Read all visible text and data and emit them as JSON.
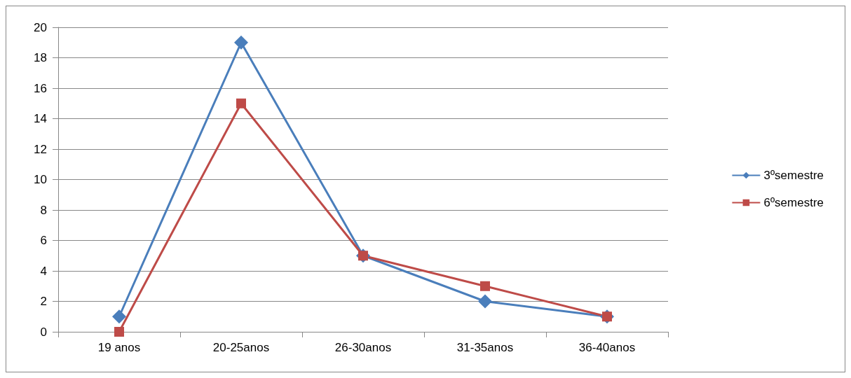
{
  "chart_data": {
    "type": "line",
    "categories": [
      "19 anos",
      "20-25anos",
      "26-30anos",
      "31-35anos",
      "36-40anos"
    ],
    "series": [
      {
        "name": "3ºsemestre",
        "color": "#4a7ebb",
        "marker": "diamond",
        "values": [
          1,
          19,
          5,
          2,
          1
        ]
      },
      {
        "name": "6ºsemestre",
        "color": "#be4b48",
        "marker": "square",
        "values": [
          0,
          15,
          5,
          3,
          1
        ]
      }
    ],
    "ylim": [
      0,
      20
    ],
    "yticks": [
      0,
      2,
      4,
      6,
      8,
      10,
      12,
      14,
      16,
      18,
      20
    ],
    "grid": "y",
    "legend": "right"
  }
}
